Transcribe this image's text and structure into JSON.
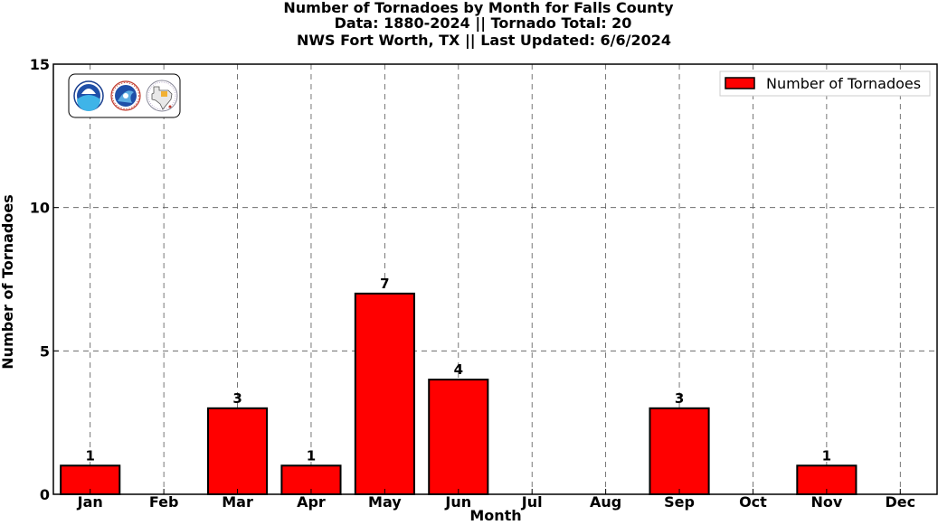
{
  "title_lines": [
    "Number of Tornadoes by Month for Falls County",
    "Data: 1880-2024 || Tornado Total: 20",
    "NWS Fort Worth, TX || Last Updated: 6/6/2024"
  ],
  "logos": [
    "noaa-logo",
    "national-weather-service-logo",
    "texas-map-logo"
  ],
  "chart_data": {
    "type": "bar",
    "title": "Number of Tornadoes by Month for Falls County",
    "subtitle": "Data: 1880-2024 || Tornado Total: 20 / NWS Fort Worth, TX || Last Updated: 6/6/2024",
    "xlabel": "Month",
    "ylabel": "Number of Tornadoes",
    "categories": [
      "Jan",
      "Feb",
      "Mar",
      "Apr",
      "May",
      "Jun",
      "Jul",
      "Aug",
      "Sep",
      "Oct",
      "Nov",
      "Dec"
    ],
    "series": [
      {
        "name": "Number of Tornadoes",
        "values": [
          1,
          0,
          3,
          1,
          7,
          4,
          0,
          0,
          3,
          0,
          1,
          0
        ],
        "color": "#ff0000"
      }
    ],
    "data_labels": [
      "1",
      "",
      "3",
      "1",
      "7",
      "4",
      "",
      "",
      "3",
      "",
      "1",
      ""
    ],
    "ylim": [
      0,
      15
    ],
    "yticks": [
      0,
      5,
      10,
      15
    ],
    "grid": true,
    "legend_position": "top-right"
  }
}
